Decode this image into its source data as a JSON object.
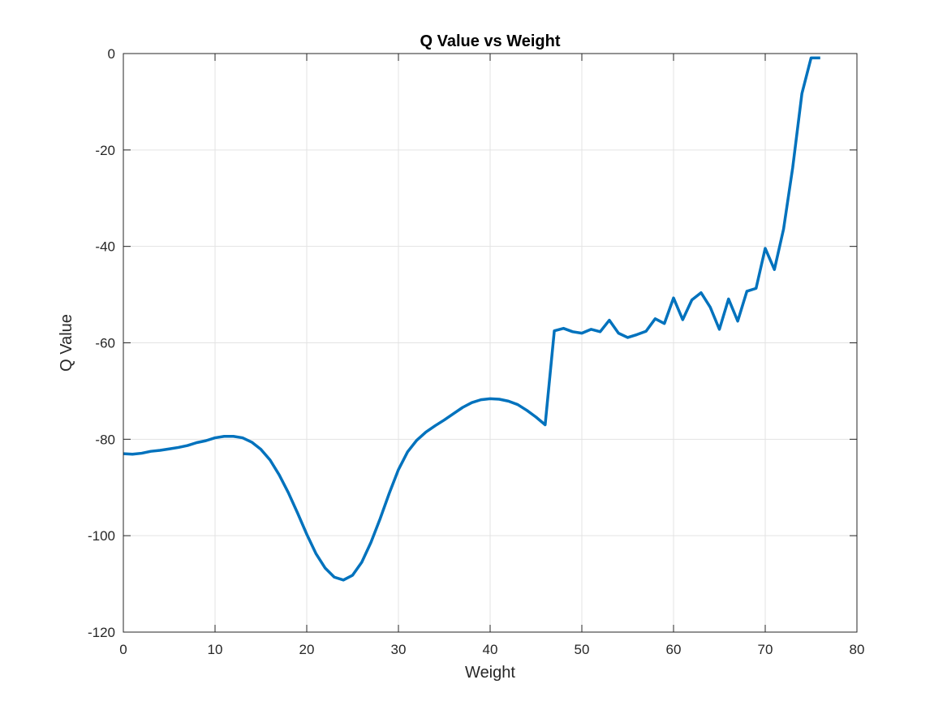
{
  "chart_data": {
    "type": "line",
    "title": "Q Value vs Weight",
    "xlabel": "Weight",
    "ylabel": "Q Value",
    "xlim": [
      0,
      80
    ],
    "ylim": [
      -120,
      0
    ],
    "xticks": [
      0,
      10,
      20,
      30,
      40,
      50,
      60,
      70,
      80
    ],
    "yticks": [
      -120,
      -100,
      -80,
      -60,
      -40,
      -20,
      0
    ],
    "xtick_labels": [
      "0",
      "10",
      "20",
      "30",
      "40",
      "50",
      "60",
      "70",
      "80"
    ],
    "ytick_labels": [
      "-120",
      "-100",
      "-80",
      "-60",
      "-40",
      "-20",
      "0"
    ],
    "grid": true,
    "colors": {
      "series": "#0072bd",
      "axis": "#262626",
      "grid": "#e3e3e3"
    },
    "series": [
      {
        "x": [
          0,
          1,
          2,
          3,
          4,
          5,
          6,
          7,
          8,
          9,
          10,
          11,
          12,
          13,
          14,
          15,
          16,
          17,
          18,
          19,
          20,
          21,
          22,
          23,
          24,
          25,
          26,
          27,
          28,
          29,
          30,
          31,
          32,
          33,
          34,
          35,
          36,
          37,
          38,
          39,
          40,
          41,
          42,
          43,
          44,
          45,
          46,
          47,
          48,
          49,
          50,
          51,
          52,
          53,
          54,
          55,
          56,
          57,
          58,
          59,
          60,
          61,
          62,
          63,
          64,
          65,
          66,
          67,
          68,
          69,
          70,
          71,
          72,
          73,
          74,
          75,
          76
        ],
        "values": [
          -83,
          -83.1,
          -82.9,
          -82.5,
          -82.3,
          -82,
          -81.7,
          -81.3,
          -80.7,
          -80.3,
          -79.7,
          -79.4,
          -79.4,
          -79.7,
          -80.6,
          -82.1,
          -84.3,
          -87.4,
          -91.1,
          -95.3,
          -99.7,
          -103.7,
          -106.7,
          -108.6,
          -109.2,
          -108.2,
          -105.5,
          -101.4,
          -96.5,
          -91.2,
          -86.3,
          -82.6,
          -80.2,
          -78.5,
          -77.2,
          -76,
          -74.7,
          -73.4,
          -72.4,
          -71.8,
          -71.6,
          -71.7,
          -72.1,
          -72.8,
          -74,
          -75.4,
          -77,
          -57.5,
          -57,
          -57.7,
          -58,
          -57.2,
          -57.7,
          -55.3,
          -58,
          -58.9,
          -58.3,
          -57.6,
          -55,
          -56,
          -50.7,
          -55.2,
          -51.1,
          -49.6,
          -52.6,
          -57.2,
          -50.9,
          -55.5,
          -49.3,
          -48.7,
          -40.4,
          -44.8,
          -36.4,
          -23.6,
          -8.3,
          -0.9,
          -0.9
        ]
      }
    ]
  }
}
